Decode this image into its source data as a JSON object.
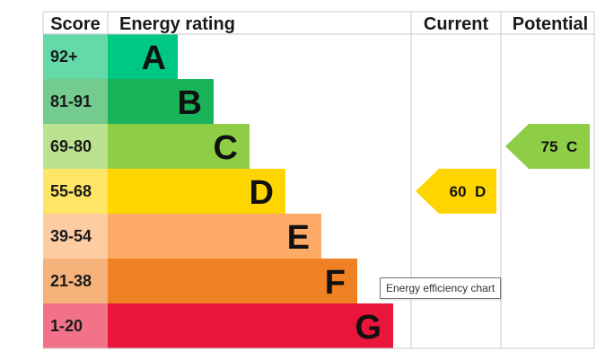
{
  "chart_data": {
    "type": "bar",
    "headers": {
      "score": "Score",
      "rating": "Energy rating",
      "current": "Current",
      "potential": "Potential"
    },
    "bands": [
      {
        "score": "92+",
        "letter": "A",
        "color": "#00c781",
        "score_bg": "#66d9a9"
      },
      {
        "score": "81-91",
        "letter": "B",
        "color": "#19b459",
        "score_bg": "#73cc8d"
      },
      {
        "score": "69-80",
        "letter": "C",
        "color": "#8dce46",
        "score_bg": "#bae28f"
      },
      {
        "score": "55-68",
        "letter": "D",
        "color": "#ffd500",
        "score_bg": "#ffe566"
      },
      {
        "score": "39-54",
        "letter": "E",
        "color": "#fcaa65",
        "score_bg": "#fdcca3"
      },
      {
        "score": "21-38",
        "letter": "F",
        "color": "#ef8023",
        "score_bg": "#f5b37b"
      },
      {
        "score": "1-20",
        "letter": "G",
        "color": "#e9153b",
        "score_bg": "#f27389"
      }
    ],
    "current": {
      "value": 60,
      "band": "D",
      "label": "60  D",
      "color": "#ffd500"
    },
    "potential": {
      "value": 75,
      "band": "C",
      "label": "75  C",
      "color": "#8dce46"
    }
  },
  "tooltip": "Energy efficiency chart"
}
